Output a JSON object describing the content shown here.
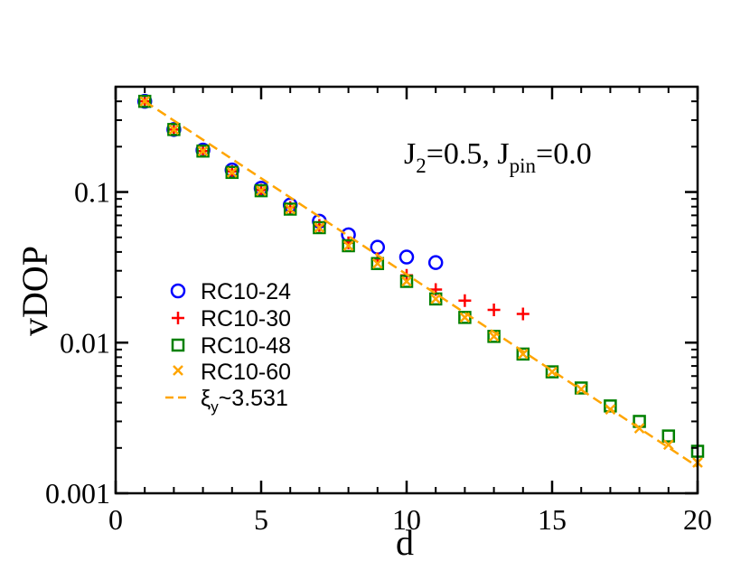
{
  "chart_data": {
    "type": "scatter",
    "title": "",
    "annotation": {
      "main": "J",
      "sub1": "2",
      "mid": "=0.5, J",
      "sub2": "pin",
      "tail": "=0.0"
    },
    "xlabel": "d",
    "ylabel": "vDOP",
    "xscale": "linear",
    "yscale": "log",
    "xlim": [
      0,
      20
    ],
    "ylim": [
      0.001,
      0.5
    ],
    "xticks": [
      0,
      5,
      10,
      15,
      20
    ],
    "xtick_labels": [
      "0",
      "5",
      "10",
      "15",
      "20"
    ],
    "yticks": [
      0.001,
      0.01,
      0.1
    ],
    "ytick_labels": [
      "0.001",
      "0.01",
      "0.1"
    ],
    "legend_position": "center-left",
    "series": [
      {
        "name": "RC10-24",
        "marker": "circle",
        "color": "#0000ff",
        "x": [
          1,
          2,
          3,
          4,
          5,
          6,
          7,
          8,
          9,
          10,
          11
        ],
        "y": [
          0.4,
          0.26,
          0.19,
          0.14,
          0.106,
          0.082,
          0.064,
          0.052,
          0.043,
          0.037,
          0.034
        ]
      },
      {
        "name": "RC10-30",
        "marker": "plus",
        "color": "#ff0000",
        "x": [
          1,
          2,
          3,
          4,
          5,
          6,
          7,
          8,
          9,
          10,
          11,
          12,
          13,
          14
        ],
        "y": [
          0.4,
          0.26,
          0.187,
          0.137,
          0.103,
          0.079,
          0.06,
          0.046,
          0.036,
          0.028,
          0.0225,
          0.019,
          0.0165,
          0.0155
        ]
      },
      {
        "name": "RC10-48",
        "marker": "square",
        "color": "#008000",
        "x": [
          1,
          2,
          3,
          4,
          5,
          6,
          7,
          8,
          9,
          10,
          11,
          12,
          13,
          14,
          15,
          16,
          17,
          18,
          19,
          20
        ],
        "y": [
          0.4,
          0.26,
          0.187,
          0.135,
          0.102,
          0.077,
          0.058,
          0.044,
          0.0335,
          0.0255,
          0.0195,
          0.0147,
          0.011,
          0.0084,
          0.0064,
          0.005,
          0.0038,
          0.003,
          0.0024,
          0.0019
        ]
      },
      {
        "name": "RC10-60",
        "marker": "x",
        "color": "#ffa500",
        "x": [
          1,
          2,
          3,
          4,
          5,
          6,
          7,
          8,
          9,
          10,
          11,
          12,
          13,
          14,
          15,
          16,
          17,
          18,
          19,
          20
        ],
        "y": [
          0.4,
          0.26,
          0.187,
          0.135,
          0.102,
          0.077,
          0.058,
          0.044,
          0.0335,
          0.0255,
          0.0195,
          0.0147,
          0.011,
          0.0084,
          0.0064,
          0.0049,
          0.0036,
          0.0027,
          0.0021,
          0.0016
        ]
      }
    ],
    "fit": {
      "name_main": "ξ",
      "name_sub": "y",
      "name_tail": "~3.531",
      "color": "#ffa500",
      "style": "dashed",
      "x": [
        1,
        20
      ],
      "y": [
        0.4,
        0.0015
      ]
    }
  }
}
